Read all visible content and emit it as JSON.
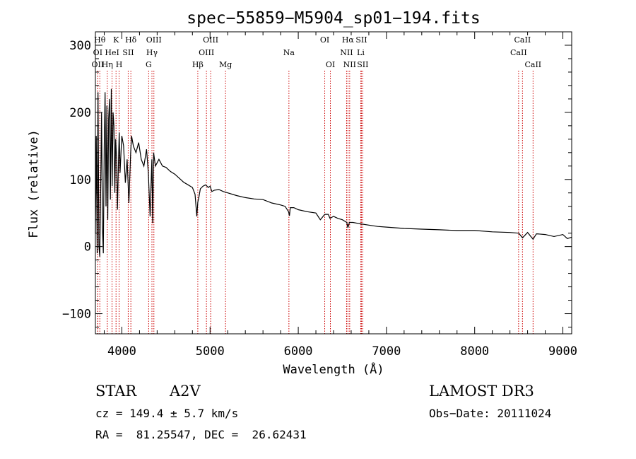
{
  "chart_data": {
    "type": "line",
    "title": "spec−55859−M5904_sp01−194.fits",
    "xlabel": "Wavelength (Å)",
    "ylabel": "Flux (relative)",
    "xlim": [
      3700,
      9100
    ],
    "ylim": [
      -130,
      320
    ],
    "xticks": [
      4000,
      5000,
      6000,
      7000,
      8000,
      9000
    ],
    "yticks": [
      -100,
      0,
      100,
      200,
      300
    ],
    "series": [
      {
        "name": "flux",
        "x": [
          3700,
          3710,
          3720,
          3730,
          3740,
          3750,
          3760,
          3770,
          3780,
          3790,
          3800,
          3810,
          3820,
          3830,
          3840,
          3850,
          3860,
          3870,
          3880,
          3890,
          3900,
          3910,
          3920,
          3930,
          3940,
          3950,
          3960,
          3970,
          3980,
          3990,
          4000,
          4020,
          4040,
          4060,
          4080,
          4100,
          4110,
          4130,
          4160,
          4190,
          4220,
          4250,
          4280,
          4300,
          4320,
          4340,
          4350,
          4360,
          4380,
          4420,
          4460,
          4500,
          4550,
          4600,
          4650,
          4700,
          4750,
          4800,
          4830,
          4850,
          4861,
          4875,
          4890,
          4920,
          4950,
          4980,
          5000,
          5020,
          5050,
          5100,
          5150,
          5200,
          5300,
          5400,
          5500,
          5600,
          5700,
          5800,
          5850,
          5890,
          5900,
          5910,
          5950,
          6000,
          6100,
          6200,
          6250,
          6300,
          6340,
          6360,
          6400,
          6450,
          6500,
          6550,
          6563,
          6580,
          6620,
          6700,
          6800,
          6900,
          7000,
          7200,
          7400,
          7600,
          7800,
          8000,
          8200,
          8400,
          8500,
          8542,
          8600,
          8662,
          8700,
          8800,
          8900,
          9000,
          9050,
          9100
        ],
        "y": [
          20,
          165,
          -10,
          230,
          0,
          -15,
          90,
          200,
          30,
          -10,
          150,
          230,
          60,
          210,
          40,
          190,
          220,
          70,
          235,
          90,
          200,
          180,
          80,
          160,
          130,
          55,
          120,
          170,
          110,
          140,
          165,
          150,
          95,
          130,
          65,
          140,
          165,
          150,
          140,
          155,
          130,
          120,
          145,
          110,
          45,
          130,
          35,
          140,
          120,
          130,
          120,
          118,
          112,
          108,
          102,
          96,
          92,
          88,
          78,
          45,
          66,
          75,
          86,
          90,
          92,
          88,
          90,
          82,
          84,
          85,
          82,
          80,
          76,
          73,
          71,
          70,
          65,
          62,
          60,
          52,
          46,
          58,
          58,
          55,
          52,
          50,
          40,
          48,
          48,
          42,
          45,
          42,
          40,
          36,
          28,
          36,
          36,
          34,
          32,
          30,
          29,
          27,
          26,
          25,
          24,
          24,
          22,
          21,
          20,
          13,
          21,
          11,
          19,
          18,
          15,
          18,
          12,
          14
        ]
      }
    ],
    "lines": [
      {
        "name": "OII",
        "x": 3727,
        "row": 2
      },
      {
        "name": "OI",
        "x": 3727,
        "row": 1
      },
      {
        "name": "Hθ",
        "x": 3750,
        "row": 0
      },
      {
        "name": "Hη",
        "x": 3835,
        "row": 2
      },
      {
        "name": "HeI",
        "x": 3889,
        "row": 1
      },
      {
        "name": "K",
        "x": 3934,
        "row": 0
      },
      {
        "name": "H",
        "x": 3969,
        "row": 2
      },
      {
        "name": "SII",
        "x": 4072,
        "row": 1
      },
      {
        "name": "Hδ",
        "x": 4102,
        "row": 0
      },
      {
        "name": "G",
        "x": 4304,
        "row": 2
      },
      {
        "name": "Hγ",
        "x": 4341,
        "row": 1
      },
      {
        "name": "OIII",
        "x": 4363,
        "row": 0
      },
      {
        "name": "Hβ",
        "x": 4861,
        "row": 2
      },
      {
        "name": "OIII",
        "x": 4959,
        "row": 1
      },
      {
        "name": "OIII",
        "x": 5007,
        "row": 0
      },
      {
        "name": "Mg",
        "x": 5175,
        "row": 2
      },
      {
        "name": "Na",
        "x": 5894,
        "row": 1
      },
      {
        "name": "OI",
        "x": 6300,
        "row": 0
      },
      {
        "name": "OI",
        "x": 6364,
        "row": 2
      },
      {
        "name": "NII",
        "x": 6548,
        "row": 1
      },
      {
        "name": "Hα",
        "x": 6563,
        "row": 0
      },
      {
        "name": "NII",
        "x": 6583,
        "row": 2
      },
      {
        "name": "Li",
        "x": 6708,
        "row": 1
      },
      {
        "name": "SII",
        "x": 6716,
        "row": 0
      },
      {
        "name": "SII",
        "x": 6731,
        "row": 2
      },
      {
        "name": "CaII",
        "x": 8498,
        "row": 1
      },
      {
        "name": "CaII",
        "x": 8542,
        "row": 0
      },
      {
        "name": "CaII",
        "x": 8662,
        "row": 2
      }
    ]
  },
  "info": {
    "class": "STAR",
    "subclass": "A2V",
    "survey": "LAMOST DR3",
    "cz": "cz = 149.4 ± 5.7 km/s",
    "obs_date": "Obs−Date: 20111024",
    "coords": "RA =  81.25547, DEC =  26.62431"
  },
  "colors": {
    "line_marker": "#cc0000",
    "spectrum": "#000000",
    "axes": "#000000"
  }
}
